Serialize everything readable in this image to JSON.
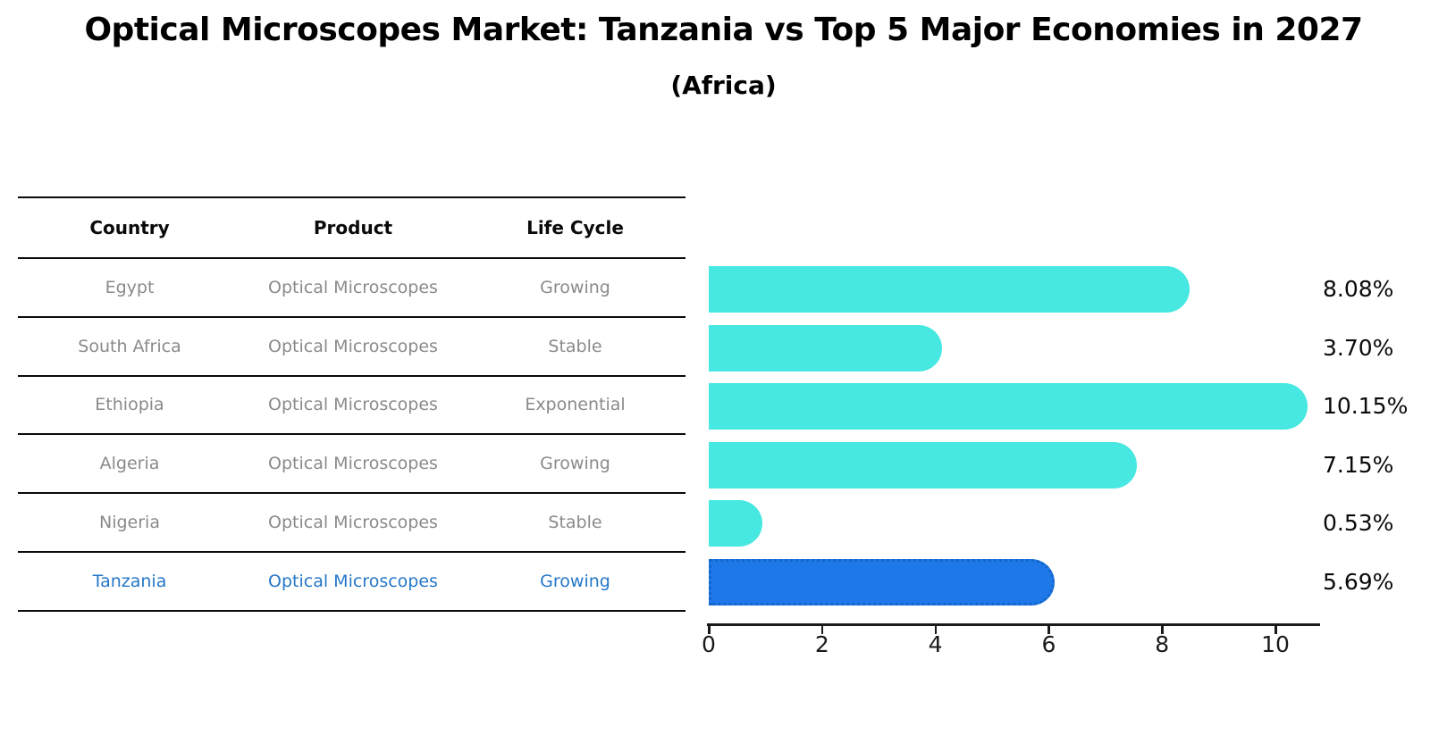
{
  "title": "Optical Microscopes Market: Tanzania vs Top 5 Major Economies in 2027",
  "subtitle": "(Africa)",
  "table": {
    "headers": [
      "Country",
      "Product",
      "Life Cycle"
    ],
    "rows": [
      {
        "country": "Egypt",
        "product": "Optical Microscopes",
        "life_cycle": "Growing",
        "highlight": false
      },
      {
        "country": "South Africa",
        "product": "Optical Microscopes",
        "life_cycle": "Stable",
        "highlight": false
      },
      {
        "country": "Ethiopia",
        "product": "Optical Microscopes",
        "life_cycle": "Exponential",
        "highlight": false
      },
      {
        "country": "Algeria",
        "product": "Optical Microscopes",
        "life_cycle": "Growing",
        "highlight": false
      },
      {
        "country": "Nigeria",
        "product": "Optical Microscopes",
        "life_cycle": "Stable",
        "highlight": false
      },
      {
        "country": "Tanzania",
        "product": "Optical Microscopes",
        "life_cycle": "Growing",
        "highlight": true
      }
    ]
  },
  "chart_data": {
    "type": "bar",
    "orientation": "horizontal",
    "title": "Optical Microscopes Market: Tanzania vs Top 5 Major Economies in 2027",
    "subtitle": "(Africa)",
    "categories": [
      "Egypt",
      "South Africa",
      "Ethiopia",
      "Algeria",
      "Nigeria",
      "Tanzania"
    ],
    "values": [
      8.08,
      3.7,
      10.15,
      7.15,
      0.53,
      5.69
    ],
    "value_labels": [
      "8.08%",
      "3.70%",
      "10.15%",
      "7.15%",
      "0.53%",
      "5.69%"
    ],
    "xticks": [
      "0",
      "2",
      "4",
      "6",
      "8",
      "10"
    ],
    "xlim": [
      0,
      10.75
    ],
    "grid": false,
    "legend": false,
    "bar_color": "#46E8E1",
    "highlight_bar_color": "#1E78E8",
    "highlight_border_color": "#1565CB",
    "highlight_index": 5,
    "highlight_text_color": "#2577C8",
    "axis_color": "#1a1a1a",
    "table_text_color": "#8a8a8a"
  }
}
